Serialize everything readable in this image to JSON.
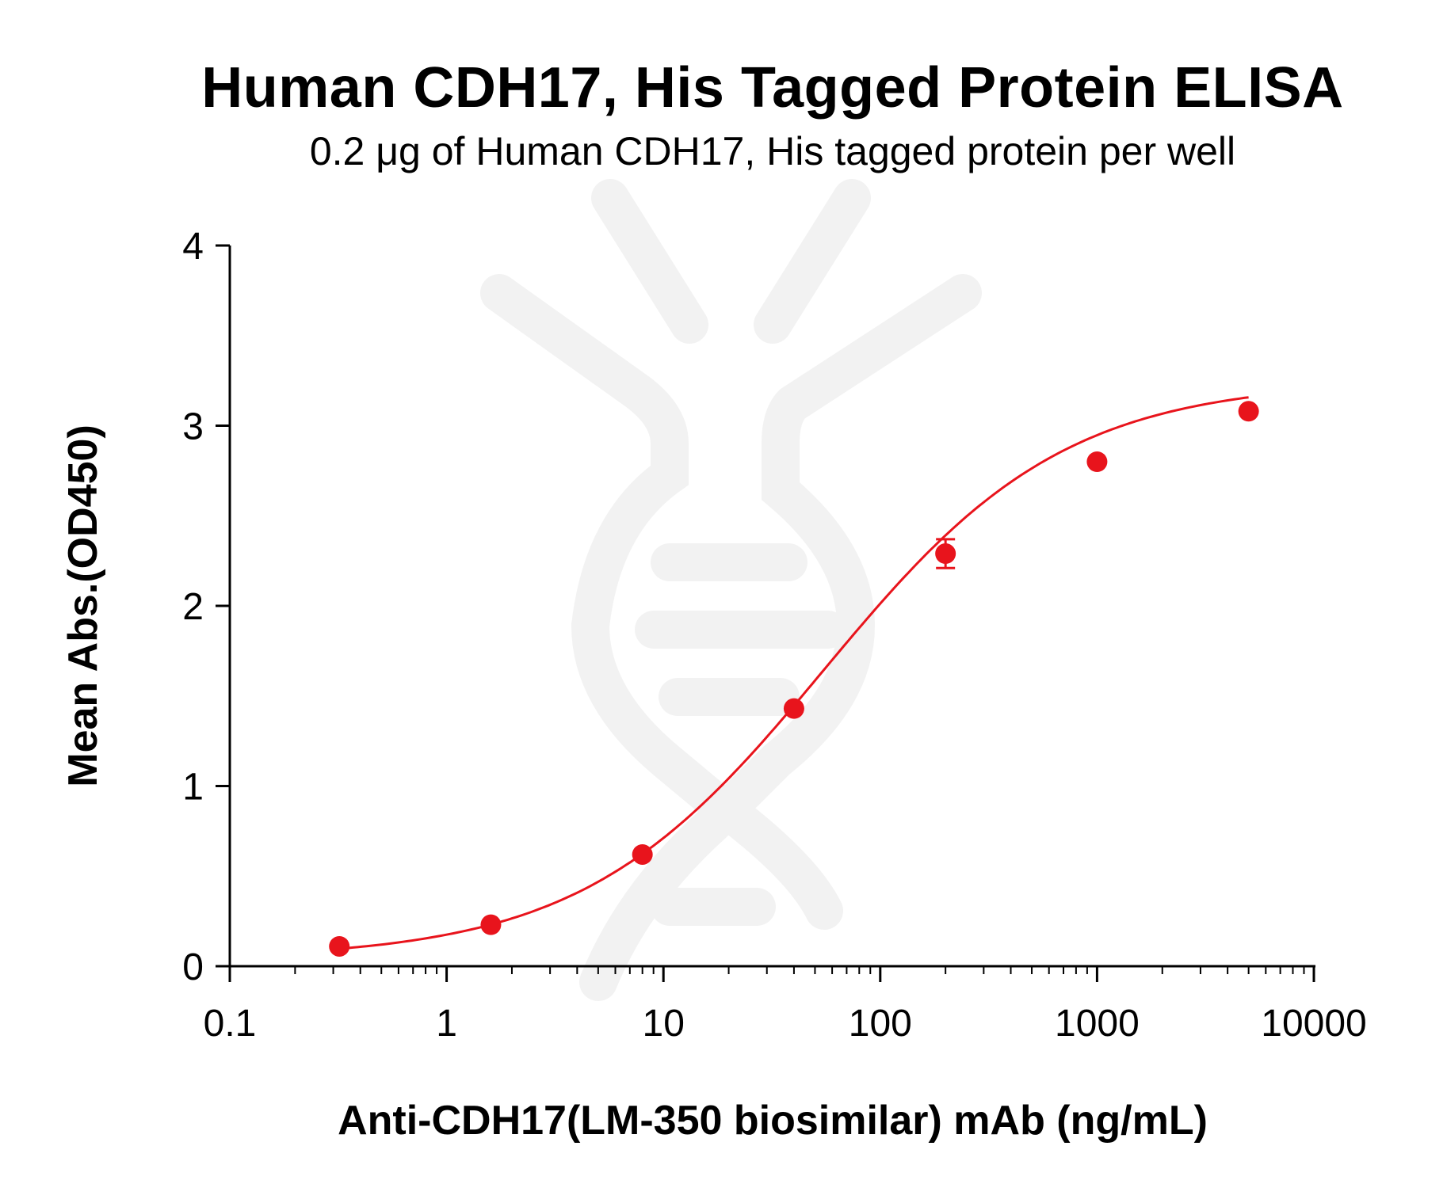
{
  "chart_data": {
    "type": "scatter",
    "title": "Human CDH17, His Tagged Protein ELISA",
    "subtitle": "0.2 μg of Human CDH17, His tagged protein per well",
    "xlabel": "Anti-CDH17(LM-350 biosimilar) mAb (ng/mL)",
    "ylabel": "Mean Abs.(OD450)",
    "x_scale": "log",
    "xlim": [
      0.1,
      10000
    ],
    "ylim": [
      0,
      4
    ],
    "x_ticks": [
      0.1,
      1,
      10,
      100,
      1000,
      10000
    ],
    "x_tick_labels": [
      "0.1",
      "1",
      "10",
      "100",
      "1000",
      "10000"
    ],
    "y_ticks": [
      0,
      1,
      2,
      3,
      4
    ],
    "y_tick_labels": [
      "0",
      "1",
      "2",
      "3",
      "4"
    ],
    "grid": false,
    "legend": "none",
    "series": [
      {
        "x": [
          0.32,
          1.6,
          8,
          40,
          200,
          1000,
          5000
        ],
        "y": [
          0.11,
          0.23,
          0.62,
          1.43,
          2.29,
          2.8,
          3.08
        ],
        "error": [
          0,
          0,
          0,
          0,
          0.08,
          0,
          0
        ],
        "fit": "four-parameter logistic",
        "color": "#e8141c"
      }
    ],
    "fit_params": {
      "bottom": 0.04,
      "top": 3.25,
      "ec50": 55,
      "hill": 0.78
    }
  },
  "colors": {
    "series": "#e8141c",
    "axis": "#000000",
    "watermark": "#f2f2f2"
  }
}
